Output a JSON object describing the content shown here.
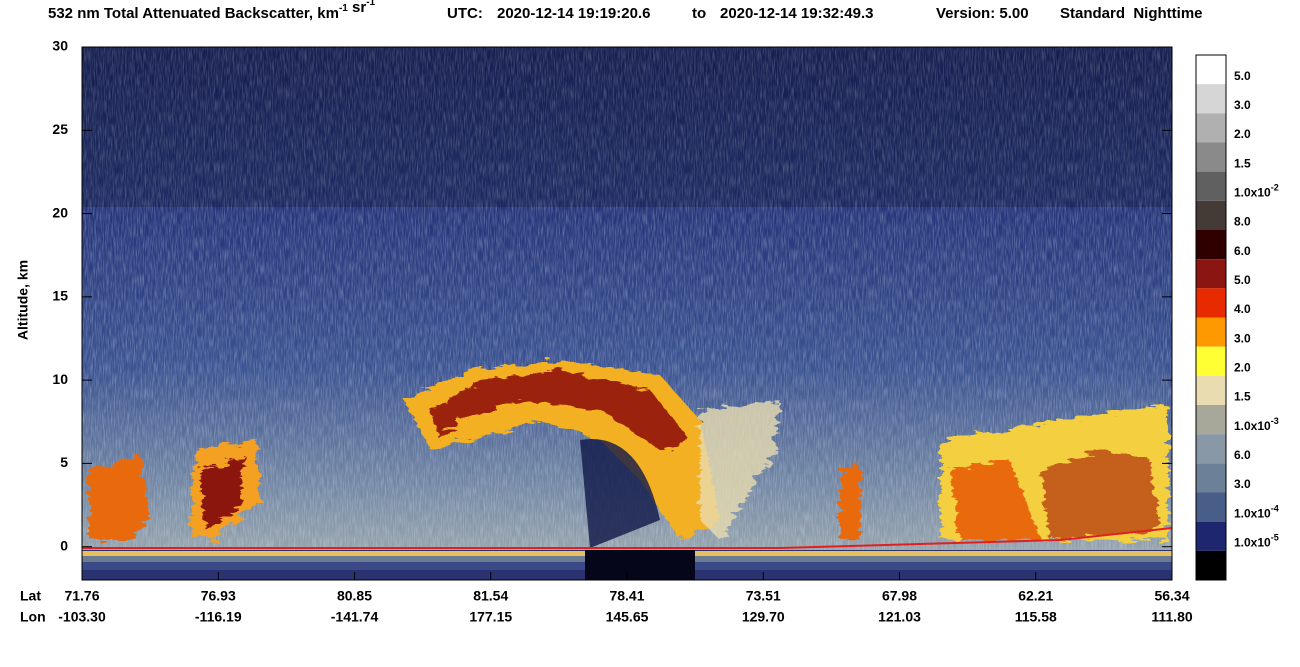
{
  "chart_data": {
    "type": "heatmap",
    "title_parts": [
      {
        "text": "532 nm Total Attenuated Backscatter, km"
      },
      {
        "sup": "-1"
      },
      {
        "text": " sr"
      },
      {
        "sup": "-1"
      }
    ],
    "utc_label": "UTC:",
    "start_time": "2020-12-14 19:19:20.6",
    "to_label": "to",
    "end_time": "2020-12-14 19:32:49.3",
    "version": "Version: 5.00",
    "mode": "Standard  Nighttime",
    "ylabel": "Altitude, km",
    "ylim": [
      -2,
      30
    ],
    "yticks": [
      0,
      5,
      10,
      15,
      20,
      25,
      30
    ],
    "lat_label": "Lat",
    "lon_label": "Lon",
    "lat": [
      "71.76",
      "76.93",
      "80.85",
      "81.54",
      "78.41",
      "73.51",
      "67.98",
      "62.21",
      "56.34"
    ],
    "lon": [
      "-103.30",
      "-116.19",
      "-141.74",
      "177.15",
      "145.65",
      "129.70",
      "121.03",
      "115.58",
      "111.80"
    ],
    "colorbar": [
      {
        "color": "#ffffff",
        "label": "5.0"
      },
      {
        "color": "#d6d6d6",
        "label": "3.0"
      },
      {
        "color": "#b0b0b0",
        "label": "2.0"
      },
      {
        "color": "#8a8a8a",
        "label": "1.5"
      },
      {
        "color": "#606060",
        "label": "1.0x10",
        "sup": "-2"
      },
      {
        "color": "#443a36",
        "label": "8.0"
      },
      {
        "color": "#2e0000",
        "label": "6.0"
      },
      {
        "color": "#8b1510",
        "label": "5.0"
      },
      {
        "color": "#e82a00",
        "label": "4.0"
      },
      {
        "color": "#ff9900",
        "label": "3.0"
      },
      {
        "color": "#ffff33",
        "label": "2.0"
      },
      {
        "color": "#e8dcb0",
        "label": "1.5"
      },
      {
        "color": "#a8a89a",
        "label": "1.0x10",
        "sup": "-3"
      },
      {
        "color": "#8898a6",
        "label": "6.0"
      },
      {
        "color": "#6c8098",
        "label": "3.0"
      },
      {
        "color": "#485e88",
        "label": "1.0x10",
        "sup": "-4"
      },
      {
        "color": "#1e2670",
        "label": "1.0x10",
        "sup": "-5"
      },
      {
        "color": "#000000",
        "label": null
      }
    ]
  }
}
